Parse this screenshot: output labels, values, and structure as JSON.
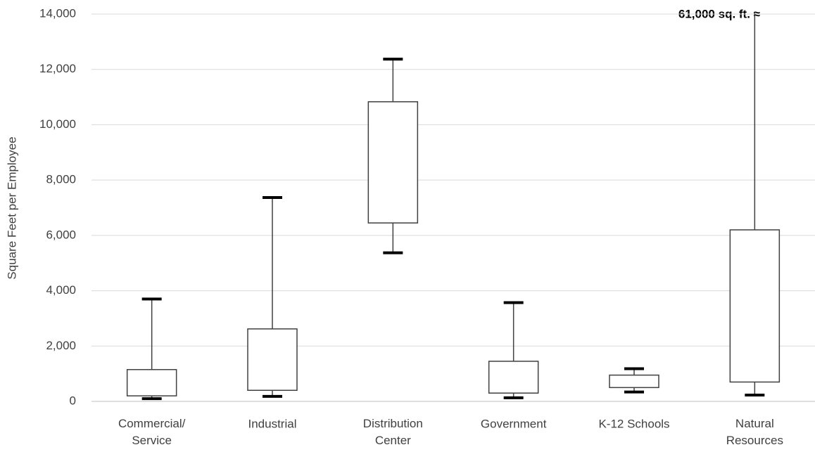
{
  "chart_data": {
    "type": "box",
    "y_label": "Square Feet per Employee",
    "categories": [
      "Commercial/\nService",
      "Industrial",
      "Distribution\nCenter",
      "Government",
      "K-12 Schools",
      "Natural\nResources"
    ],
    "min": [
      100,
      180,
      5370,
      130,
      340,
      230
    ],
    "q1": [
      200,
      400,
      6450,
      300,
      500,
      700
    ],
    "q3": [
      1150,
      2620,
      10830,
      1450,
      950,
      6200
    ],
    "max": [
      3700,
      7370,
      12370,
      3570,
      1180,
      61000
    ],
    "annotation": "61,000 sq. ft. ≈",
    "ylim": [
      0,
      14000
    ],
    "yticks": [
      {
        "value": 0,
        "label": "0"
      },
      {
        "value": 2000,
        "label": "2,000"
      },
      {
        "value": 4000,
        "label": "4,000"
      },
      {
        "value": 6000,
        "label": "6,000"
      },
      {
        "value": 8000,
        "label": "8,000"
      },
      {
        "value": 10000,
        "label": "10,000"
      },
      {
        "value": 12000,
        "label": "12,000"
      },
      {
        "value": 14000,
        "label": "14,000"
      }
    ],
    "grid": true,
    "color": "#404040"
  }
}
